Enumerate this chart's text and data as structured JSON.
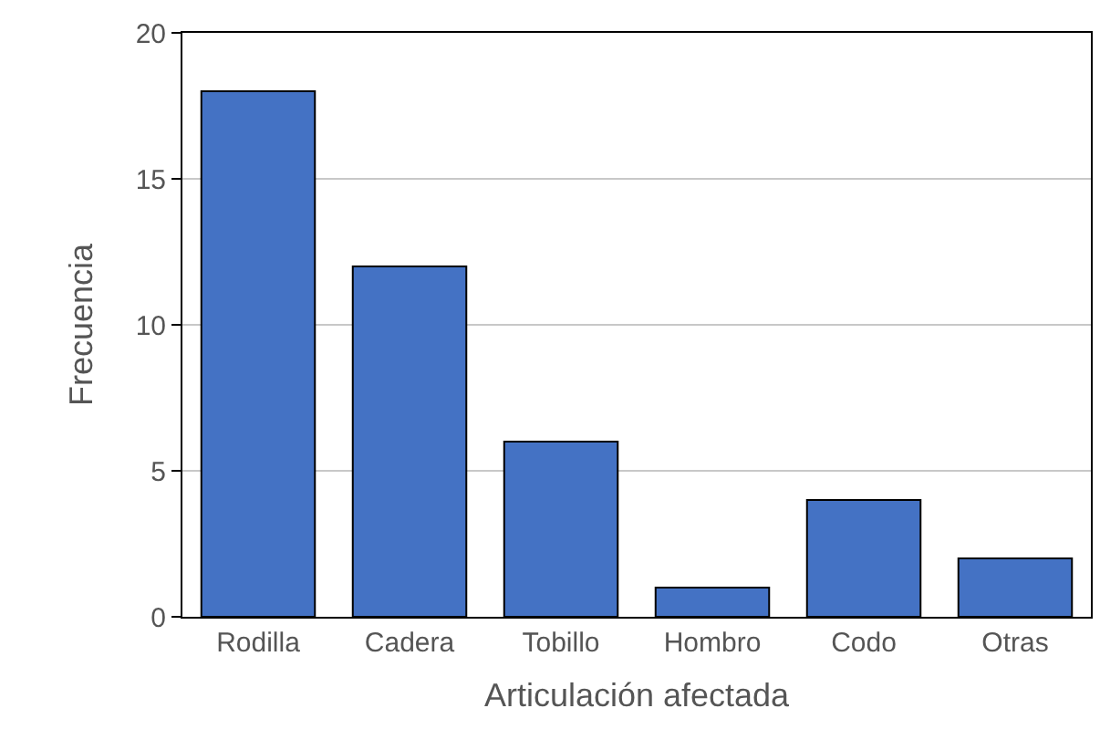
{
  "chart_data": {
    "type": "bar",
    "xlabel": "Articulación afectada",
    "ylabel": "Frecuencia",
    "categories": [
      "Rodilla",
      "Cadera",
      "Tobillo",
      "Hombro",
      "Codo",
      "Otras"
    ],
    "values": [
      18,
      12,
      6,
      1,
      4,
      2
    ],
    "color": "#4472c4",
    "ylim": [
      0,
      20
    ],
    "yticks": [
      0,
      5,
      10,
      15,
      20
    ],
    "grid": "y"
  }
}
